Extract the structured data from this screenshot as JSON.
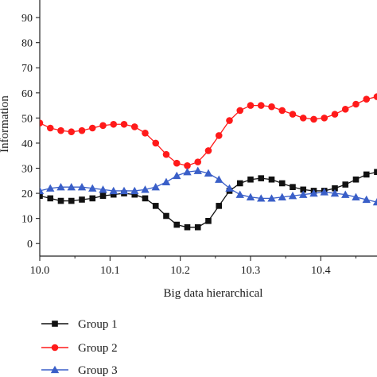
{
  "chart_data": {
    "type": "line",
    "xlabel": "Big data hierarchical",
    "ylabel": "Information",
    "xlim": [
      10.0,
      10.48
    ],
    "ylim": [
      -5,
      97
    ],
    "x_ticks": [
      10.0,
      10.1,
      10.2,
      10.3,
      10.4
    ],
    "x_tick_labels": [
      "10.0",
      "10.1",
      "10.2",
      "10.3",
      "10.4"
    ],
    "y_ticks": [
      0,
      10,
      20,
      30,
      40,
      50,
      60,
      70,
      80,
      90
    ],
    "y_tick_labels": [
      "0",
      "10",
      "20",
      "30",
      "40",
      "50",
      "60",
      "70",
      "80",
      "90"
    ],
    "grid": false,
    "legend_position": "bottom-left",
    "x": [
      10.0,
      10.015,
      10.03,
      10.045,
      10.06,
      10.075,
      10.09,
      10.105,
      10.12,
      10.135,
      10.15,
      10.165,
      10.18,
      10.195,
      10.21,
      10.225,
      10.24,
      10.255,
      10.27,
      10.285,
      10.3,
      10.315,
      10.33,
      10.345,
      10.36,
      10.375,
      10.39,
      10.405,
      10.42,
      10.435,
      10.45,
      10.465,
      10.48
    ],
    "series": [
      {
        "name": "Group 1",
        "color": "#111111",
        "marker": "square",
        "values": [
          19,
          18,
          17,
          17,
          17.5,
          18,
          19,
          19.5,
          20,
          19.5,
          18,
          15,
          11,
          7.5,
          6.5,
          6.5,
          9,
          15,
          21,
          24,
          25.5,
          26,
          25.5,
          24,
          22.5,
          21.5,
          21,
          21,
          22,
          23.5,
          25.5,
          27.5,
          28.5
        ]
      },
      {
        "name": "Group 2",
        "color": "#ff1a1a",
        "marker": "circle",
        "values": [
          48,
          46,
          45,
          44.5,
          45,
          46,
          47,
          47.5,
          47.5,
          46.5,
          44,
          40,
          35.5,
          32,
          31,
          32.5,
          37,
          43,
          49,
          53,
          55,
          55,
          54.5,
          53,
          51.5,
          50,
          49.5,
          50,
          51.5,
          53.5,
          55.5,
          57.5,
          58.5
        ]
      },
      {
        "name": "Group 3",
        "color": "#3a5fc8",
        "marker": "triangle",
        "values": [
          21,
          22,
          22.5,
          22.5,
          22.5,
          22,
          21.5,
          21,
          21,
          21,
          21.5,
          22.5,
          24.5,
          27,
          28.5,
          29,
          28,
          25.5,
          22,
          19.5,
          18.5,
          18,
          18,
          18.5,
          19,
          19.5,
          20,
          20.5,
          20,
          19.5,
          18.5,
          17.5,
          16.5
        ]
      }
    ]
  }
}
